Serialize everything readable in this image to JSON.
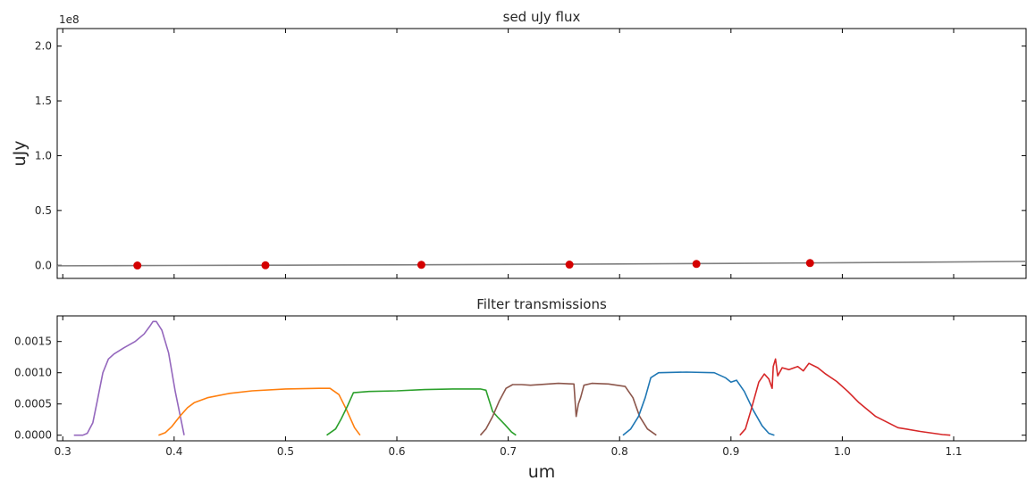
{
  "chart_data": [
    {
      "type": "scatter",
      "title": "sed uJy flux",
      "ylabel": "uJy",
      "y_offset_text": "1e8",
      "xlim": [
        0.295,
        1.165
      ],
      "ylim": [
        -12000000,
        216000000
      ],
      "xticks": [
        0.3,
        0.4,
        0.5,
        0.6,
        0.7,
        0.8,
        0.9,
        1.0,
        1.1
      ],
      "yticks": [
        0,
        50000000,
        100000000,
        150000000,
        200000000
      ],
      "ytick_labels": [
        "0.0",
        "0.5",
        "1.0",
        "1.5",
        "2.0"
      ],
      "series": [
        {
          "kind": "line",
          "color": "#808080",
          "x": [
            0.295,
            0.4,
            0.5,
            0.6,
            0.7,
            0.8,
            0.9,
            1.0,
            1.1,
            1.165
          ],
          "y": [
            -500000,
            -200000,
            100000,
            400000,
            800000,
            1200000,
            1700000,
            2300000,
            3000000,
            3500000
          ]
        },
        {
          "kind": "points",
          "color": "#d40000",
          "x": [
            0.367,
            0.482,
            0.622,
            0.755,
            0.869,
            0.971
          ],
          "y": [
            -200000,
            0,
            400000,
            600000,
            1200000,
            2000000
          ]
        }
      ]
    },
    {
      "type": "line",
      "title": "Filter transmissions",
      "xlabel": "um",
      "xlim": [
        0.295,
        1.165
      ],
      "ylim": [
        -9e-05,
        0.00191
      ],
      "xticks": [
        0.3,
        0.4,
        0.5,
        0.6,
        0.7,
        0.8,
        0.9,
        1.0,
        1.1
      ],
      "xtick_labels": [
        "0.3",
        "0.4",
        "0.5",
        "0.6",
        "0.7",
        "0.8",
        "0.9",
        "1.0",
        "1.1"
      ],
      "yticks": [
        0,
        0.0005,
        0.001,
        0.0015
      ],
      "ytick_labels": [
        "0.0000",
        "0.0005",
        "0.0010",
        "0.0015"
      ],
      "series": [
        {
          "color": "#9467bd",
          "x": [
            0.31,
            0.318,
            0.322,
            0.327,
            0.331,
            0.336,
            0.341,
            0.346,
            0.355,
            0.365,
            0.373,
            0.378,
            0.381,
            0.384,
            0.389,
            0.395,
            0.401,
            0.409
          ],
          "y": [
            0,
            0,
            3e-05,
            0.0002,
            0.00055,
            0.001,
            0.00122,
            0.0013,
            0.0014,
            0.0015,
            0.00162,
            0.00174,
            0.00182,
            0.00182,
            0.00168,
            0.00132,
            0.0007,
            0
          ]
        },
        {
          "color": "#ff7f0e",
          "x": [
            0.386,
            0.392,
            0.398,
            0.405,
            0.412,
            0.418,
            0.43,
            0.45,
            0.47,
            0.5,
            0.53,
            0.54,
            0.548,
            0.555,
            0.562,
            0.567
          ],
          "y": [
            0,
            4e-05,
            0.00014,
            0.0003,
            0.00044,
            0.00052,
            0.0006,
            0.00067,
            0.00071,
            0.00074,
            0.00075,
            0.00075,
            0.00065,
            0.0004,
            0.00012,
            0
          ]
        },
        {
          "color": "#2ca02c",
          "x": [
            0.537,
            0.545,
            0.55,
            0.556,
            0.561,
            0.575,
            0.6,
            0.625,
            0.65,
            0.675,
            0.68,
            0.683,
            0.686,
            0.691,
            0.697,
            0.703,
            0.707
          ],
          "y": [
            0,
            0.0001,
            0.00026,
            0.00048,
            0.00068,
            0.0007,
            0.00071,
            0.00073,
            0.00074,
            0.00074,
            0.00072,
            0.00055,
            0.00038,
            0.00028,
            0.00017,
            5e-05,
            0
          ]
        },
        {
          "color": "#8c564b",
          "x": [
            0.675,
            0.68,
            0.686,
            0.692,
            0.698,
            0.704,
            0.712,
            0.72,
            0.745,
            0.759,
            0.761,
            0.763,
            0.765,
            0.768,
            0.775,
            0.79,
            0.805,
            0.812,
            0.818,
            0.825,
            0.833
          ],
          "y": [
            0,
            0.0001,
            0.0003,
            0.00055,
            0.00075,
            0.00081,
            0.00081,
            0.0008,
            0.00083,
            0.00082,
            0.0003,
            0.0005,
            0.0006,
            0.0008,
            0.00083,
            0.00082,
            0.00078,
            0.0006,
            0.0003,
            0.0001,
            0
          ]
        },
        {
          "color": "#1f77b4",
          "x": [
            0.803,
            0.81,
            0.817,
            0.823,
            0.828,
            0.835,
            0.86,
            0.885,
            0.895,
            0.9,
            0.905,
            0.912,
            0.92,
            0.928,
            0.934,
            0.939
          ],
          "y": [
            0,
            0.0001,
            0.0003,
            0.0006,
            0.00092,
            0.001,
            0.00101,
            0.001,
            0.00092,
            0.00085,
            0.00088,
            0.0007,
            0.0004,
            0.00015,
            3e-05,
            0
          ]
        },
        {
          "color": "#d62728",
          "x": [
            0.908,
            0.913,
            0.918,
            0.925,
            0.93,
            0.934,
            0.937,
            0.938,
            0.94,
            0.942,
            0.946,
            0.952,
            0.96,
            0.965,
            0.97,
            0.978,
            0.985,
            0.995,
            1.005,
            1.015,
            1.03,
            1.05,
            1.07,
            1.09,
            1.097
          ],
          "y": [
            0,
            0.0001,
            0.0004,
            0.00085,
            0.00098,
            0.0009,
            0.00075,
            0.0011,
            0.00122,
            0.00095,
            0.00108,
            0.00105,
            0.0011,
            0.00103,
            0.00115,
            0.00108,
            0.00098,
            0.00086,
            0.0007,
            0.00052,
            0.0003,
            0.00012,
            6e-05,
            1e-05,
            0
          ]
        }
      ]
    }
  ]
}
